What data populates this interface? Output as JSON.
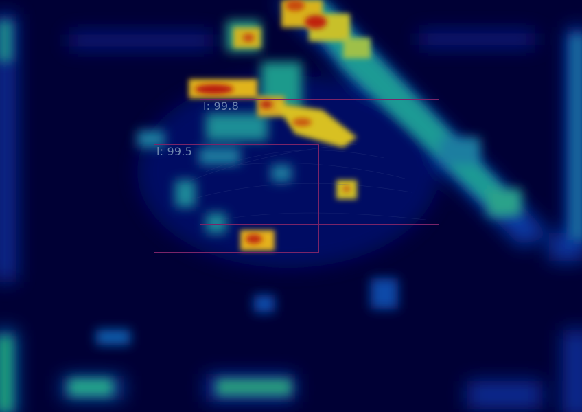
{
  "image": {
    "description_colors": {
      "background": "#000035",
      "box_outline": "#7a2468",
      "label_text": "#6f86ae"
    }
  },
  "detections": [
    {
      "label": "l: 99.8",
      "score": 99.8
    },
    {
      "label": "l: 99.5",
      "score": 99.5
    }
  ]
}
